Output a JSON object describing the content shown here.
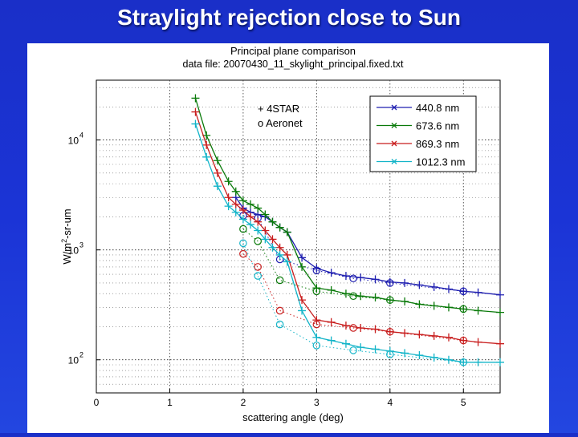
{
  "slide": {
    "title": "Straylight rejection close to Sun"
  },
  "chart_data": {
    "type": "line",
    "title": "Principal plane comparison",
    "subtitle": "data file: 20070430_11_skylight_principal.fixed.txt",
    "xlabel": "scattering angle (deg)",
    "ylabel_parts": [
      "W/m",
      "2",
      "-sr-um"
    ],
    "xlim": [
      0,
      5.5
    ],
    "ylim": [
      50,
      35000
    ],
    "yscale": "log",
    "xticks": [
      0,
      1,
      2,
      3,
      4,
      5
    ],
    "xtick_labels": [
      "0",
      "1",
      "2",
      "3",
      "4",
      "5"
    ],
    "yticks": [
      100,
      1000,
      10000
    ],
    "ytick_labels": [
      {
        "base": "10",
        "exp": "2"
      },
      {
        "base": "10",
        "exp": "3"
      },
      {
        "base": "10",
        "exp": "4"
      }
    ],
    "grid": true,
    "annotation": {
      "star_label": "+ 4STAR",
      "aeronet_label": "o Aeronet"
    },
    "legend_position": "top-right",
    "series": [
      {
        "name": "440.8 nm",
        "color": "#1f1fb0",
        "star": {
          "x": [
            1.9,
            2.0,
            2.1,
            2.2,
            2.3,
            2.4,
            2.5,
            2.6,
            2.8,
            3.0,
            3.2,
            3.4,
            3.6,
            3.8,
            4.0,
            4.2,
            4.4,
            4.6,
            4.8,
            5.0,
            5.2,
            5.5
          ],
          "y": [
            3000,
            2400,
            2200,
            2100,
            2000,
            1800,
            1600,
            1450,
            850,
            680,
            620,
            580,
            560,
            540,
            510,
            500,
            480,
            460,
            440,
            420,
            410,
            390
          ]
        },
        "aeronet": {
          "x": [
            2.0,
            2.2,
            2.5,
            3.0,
            3.5,
            4.0,
            5.0
          ],
          "y": [
            2050,
            1950,
            820,
            650,
            550,
            500,
            420
          ]
        }
      },
      {
        "name": "673.6 nm",
        "color": "#0a7a0a",
        "star": {
          "x": [
            1.35,
            1.5,
            1.65,
            1.8,
            1.9,
            2.0,
            2.1,
            2.2,
            2.3,
            2.4,
            2.5,
            2.6,
            2.8,
            3.0,
            3.2,
            3.4,
            3.6,
            3.8,
            4.0,
            4.2,
            4.4,
            4.6,
            4.8,
            5.0,
            5.2,
            5.5
          ],
          "y": [
            24000,
            11000,
            6500,
            4200,
            3400,
            2800,
            2600,
            2400,
            2100,
            1800,
            1600,
            1450,
            700,
            450,
            430,
            400,
            380,
            370,
            350,
            340,
            320,
            310,
            300,
            290,
            280,
            270
          ]
        },
        "aeronet": {
          "x": [
            2.0,
            2.2,
            2.5,
            3.0,
            3.5,
            4.0,
            5.0
          ],
          "y": [
            1550,
            1200,
            530,
            420,
            380,
            350,
            290
          ]
        }
      },
      {
        "name": "869.3 nm",
        "color": "#c81e1e",
        "star": {
          "x": [
            1.35,
            1.5,
            1.65,
            1.8,
            1.9,
            2.0,
            2.1,
            2.2,
            2.3,
            2.4,
            2.5,
            2.6,
            2.8,
            3.0,
            3.2,
            3.4,
            3.6,
            3.8,
            4.0,
            4.2,
            4.4,
            4.6,
            4.8,
            5.0,
            5.2,
            5.5
          ],
          "y": [
            18000,
            9000,
            5000,
            3000,
            2600,
            2300,
            2000,
            1800,
            1500,
            1250,
            1050,
            900,
            350,
            230,
            220,
            205,
            195,
            190,
            180,
            175,
            170,
            165,
            160,
            150,
            145,
            140
          ]
        },
        "aeronet": {
          "x": [
            2.0,
            2.2,
            2.5,
            3.0,
            3.5,
            4.0,
            5.0
          ],
          "y": [
            920,
            700,
            280,
            210,
            195,
            180,
            150
          ]
        }
      },
      {
        "name": "1012.3 nm",
        "color": "#12b4c8",
        "star": {
          "x": [
            1.35,
            1.5,
            1.65,
            1.8,
            1.9,
            2.0,
            2.1,
            2.2,
            2.3,
            2.4,
            2.5,
            2.6,
            2.8,
            3.0,
            3.2,
            3.4,
            3.6,
            3.8,
            4.0,
            4.2,
            4.4,
            4.6,
            4.8,
            5.0,
            5.2,
            5.5
          ],
          "y": [
            14000,
            7000,
            3800,
            2500,
            2200,
            1900,
            1700,
            1500,
            1250,
            1050,
            900,
            780,
            280,
            160,
            150,
            140,
            130,
            125,
            120,
            115,
            110,
            105,
            100,
            95,
            95,
            95
          ]
        },
        "aeronet": {
          "x": [
            2.0,
            2.2,
            2.5,
            3.0,
            3.5,
            4.0,
            5.0
          ],
          "y": [
            1150,
            580,
            210,
            135,
            122,
            112,
            95
          ]
        }
      }
    ]
  }
}
